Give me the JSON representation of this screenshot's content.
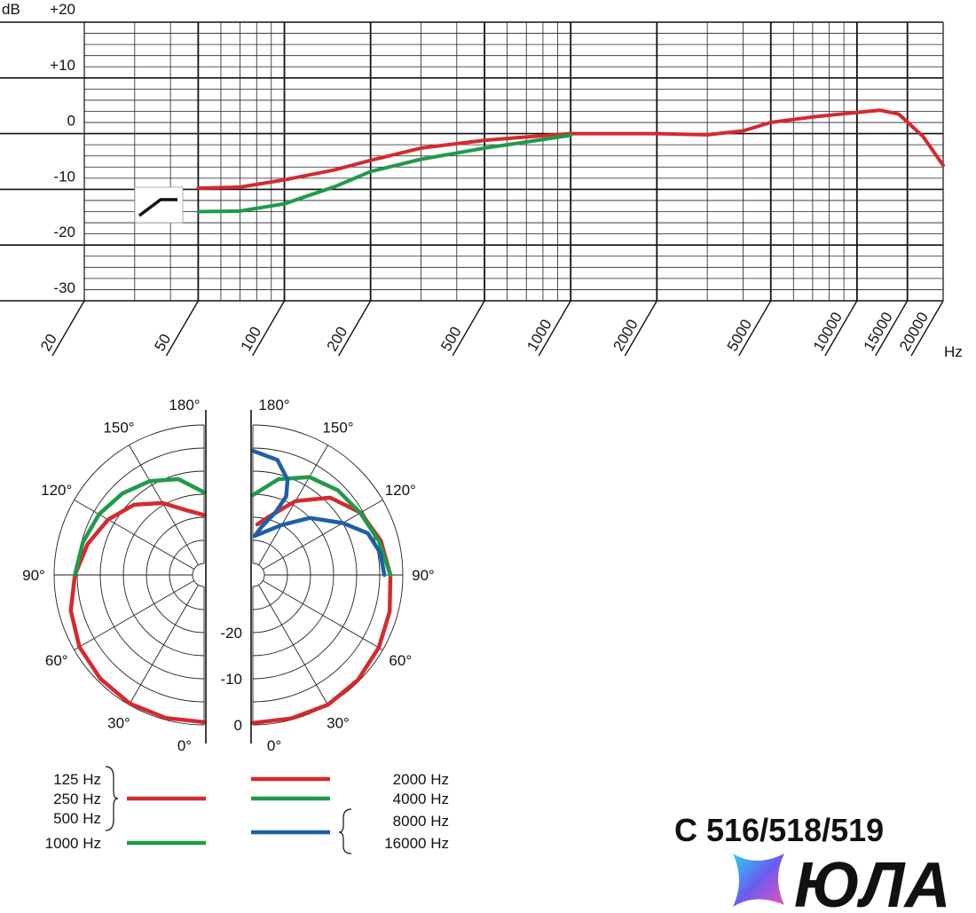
{
  "chart_data": [
    {
      "type": "line",
      "ylabel": "dB",
      "xlabel": "Hz",
      "log_x": true,
      "grid": true,
      "xlim": [
        20,
        20000
      ],
      "xticks": [
        20,
        50,
        100,
        200,
        500,
        1000,
        2000,
        5000,
        10000,
        15000,
        20000
      ],
      "minor_xticks": [
        30,
        40,
        60,
        70,
        80,
        90,
        300,
        400,
        600,
        700,
        800,
        900,
        3000,
        4000,
        6000,
        7000,
        8000,
        9000
      ],
      "ylim": [
        -30,
        20
      ],
      "yticks": [
        {
          "value": 20,
          "label": "+20"
        },
        {
          "value": 10,
          "label": "+10"
        },
        0,
        -10,
        -20,
        -30
      ],
      "minor_yticks": [
        18,
        16,
        14,
        12,
        8,
        6,
        4,
        2,
        -2,
        -4,
        -6,
        -8,
        -12,
        -14,
        -16,
        -18,
        -22,
        -24,
        -26,
        -28
      ],
      "series": [
        {
          "color": "#d42a2e",
          "x": [
            50,
            70,
            100,
            150,
            200,
            300,
            500,
            700,
            1000,
            2000,
            3000,
            4000,
            5000,
            7000,
            10000,
            12000,
            14000,
            17000,
            20000
          ],
          "values": [
            -9.8,
            -9.6,
            -8.3,
            -6.5,
            -4.8,
            -2.6,
            -1.2,
            -0.6,
            0,
            0,
            -0.2,
            0.5,
            2,
            3,
            3.8,
            4.2,
            3.5,
            -0.5,
            -5.7
          ]
        },
        {
          "color": "#1f9a4a",
          "x": [
            50,
            70,
            100,
            150,
            200,
            300,
            500,
            700,
            1000
          ],
          "values": [
            -14,
            -13.9,
            -12.6,
            -9.5,
            -6.8,
            -4.6,
            -2.6,
            -1.5,
            -0.3
          ]
        }
      ]
    },
    {
      "type": "polar",
      "rlim": [
        -30,
        0
      ],
      "rticks": [
        0,
        -10,
        -20
      ],
      "rgrid": [
        0,
        -5,
        -10,
        -15,
        -20,
        -25
      ],
      "thetaticks": [
        {
          "value": 0,
          "label": "0°"
        },
        {
          "value": 30,
          "label": "30°"
        },
        {
          "value": 60,
          "label": "60°"
        },
        {
          "value": 90,
          "label": "90°"
        },
        {
          "value": 120,
          "label": "120°"
        },
        {
          "value": 150,
          "label": "150°"
        },
        {
          "value": 180,
          "label": "180°"
        }
      ],
      "series": [
        {
          "name": [
            "125 Hz",
            "250 Hz",
            "500 Hz"
          ],
          "color": "#d42a2e",
          "side": "left",
          "theta": [
            0,
            15,
            30,
            45,
            60,
            75,
            90,
            105,
            120,
            135,
            150,
            165,
            180
          ],
          "values": [
            -0.6,
            -0.4,
            -0.3,
            -0.7,
            -1.3,
            -2.6,
            -4.5,
            -6.4,
            -8.5,
            -11,
            -14.5,
            -18,
            -19.5
          ]
        },
        {
          "name": [
            "1000 Hz"
          ],
          "color": "#1f9a4a",
          "side": "left",
          "theta": [
            90,
            105,
            120,
            135,
            150,
            165,
            180
          ],
          "values": [
            -4.5,
            -5.3,
            -6.2,
            -7.5,
            -9,
            -11,
            -14.6
          ]
        },
        {
          "name": [
            "2000 Hz"
          ],
          "color": "#d42a2e",
          "side": "right",
          "theta": [
            0,
            15,
            30,
            45,
            60,
            75,
            90,
            105,
            120,
            135,
            150,
            165,
            175
          ],
          "values": [
            -0.4,
            -0.3,
            0,
            -0.3,
            -1,
            -1.8,
            -2.7,
            -3.8,
            -5.5,
            -8.8,
            -14,
            -19.5,
            -21.5
          ]
        },
        {
          "name": [
            "4000 Hz"
          ],
          "color": "#1f9a4a",
          "side": "right",
          "theta": [
            90,
            105,
            120,
            135,
            150,
            165,
            180
          ],
          "values": [
            -2.7,
            -4.2,
            -5.6,
            -6.5,
            -8,
            -11,
            -15.2
          ]
        },
        {
          "name": [
            "8000 Hz",
            "16000 Hz"
          ],
          "color": "#1f5fa8",
          "side": "right",
          "theta": [
            180,
            168,
            160,
            157,
            160,
            170,
            177,
            150,
            135,
            120,
            110,
            100,
            90
          ],
          "values": [
            -5.6,
            -7,
            -10.5,
            -14,
            -18,
            -22,
            -24,
            -20,
            -15,
            -10,
            -6,
            -4.5,
            -4
          ]
        }
      ]
    }
  ],
  "footer": {
    "model": "C 516/518/519",
    "logo": "ЮЛА"
  }
}
